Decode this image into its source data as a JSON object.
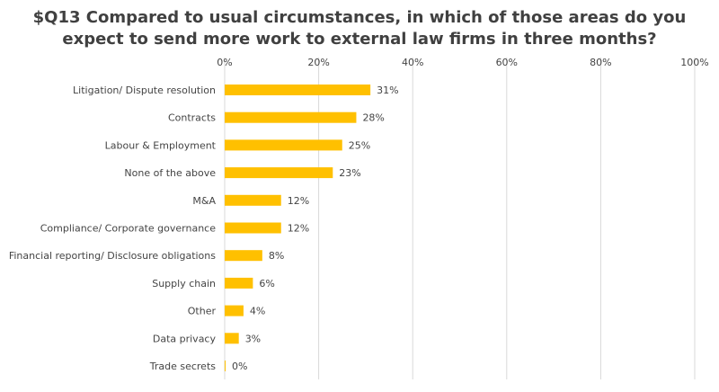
{
  "chart_data": {
    "type": "bar",
    "orientation": "horizontal",
    "title_lines": [
      "$Q13 Compared to usual circumstances, in which of those areas do you",
      "expect to send more work to external law firms in three months?"
    ],
    "categories": [
      "Litigation/ Dispute resolution",
      "Contracts",
      "Labour & Employment",
      "None of the above",
      "M&A",
      "Compliance/ Corporate governance",
      "Financial reporting/ Disclosure obligations",
      "Supply chain",
      "Other",
      "Data privacy",
      "Trade secrets"
    ],
    "values": [
      31,
      28,
      25,
      23,
      12,
      12,
      8,
      6,
      4,
      3,
      0
    ],
    "data_labels": [
      "31%",
      "28%",
      "25%",
      "23%",
      "12%",
      "12%",
      "8%",
      "6%",
      "4%",
      "3%",
      "0%"
    ],
    "xlim": [
      0,
      100
    ],
    "x_ticks": [
      0,
      20,
      40,
      60,
      80,
      100
    ],
    "x_tick_labels": [
      "0%",
      "20%",
      "40%",
      "60%",
      "80%",
      "100%"
    ],
    "xaxis_position": "top",
    "grid": "vertical",
    "legend": "none",
    "bar_color": "#FFC000",
    "grid_color": "#D9D9D9"
  }
}
